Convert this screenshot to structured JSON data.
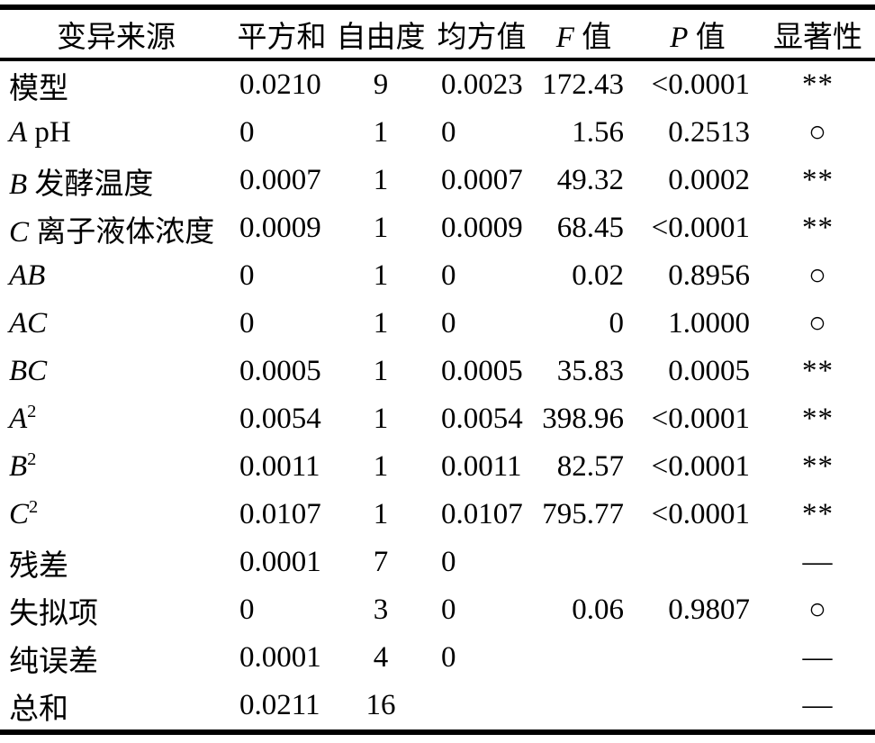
{
  "colors": {
    "text": "#000000",
    "background": "#ffffff",
    "rule": "#000000"
  },
  "table": {
    "columns": [
      {
        "key": "source",
        "em": "",
        "label": "变异来源"
      },
      {
        "key": "ss",
        "em": "",
        "label": "平方和"
      },
      {
        "key": "df",
        "em": "",
        "label": "自由度"
      },
      {
        "key": "ms",
        "em": "",
        "label": "均方值"
      },
      {
        "key": "f",
        "em": "F",
        "label": " 值"
      },
      {
        "key": "p",
        "em": "P",
        "label": " 值"
      },
      {
        "key": "sig",
        "em": "",
        "label": "显著性"
      }
    ],
    "rows": [
      {
        "label": {
          "em": "",
          "text": "模型",
          "sup": ""
        },
        "ss": "0.0210",
        "df": "9",
        "ms": "0.0023",
        "f": "172.43",
        "p": "<0.0001",
        "sig": "**"
      },
      {
        "label": {
          "em": "A",
          "text": " pH",
          "sup": ""
        },
        "ss": "0",
        "df": "1",
        "ms": "0",
        "f": "1.56",
        "p": "0.2513",
        "sig": "○"
      },
      {
        "label": {
          "em": "B",
          "text": " 发酵温度",
          "sup": ""
        },
        "ss": "0.0007",
        "df": "1",
        "ms": "0.0007",
        "f": "49.32",
        "p": "0.0002",
        "sig": "**"
      },
      {
        "label": {
          "em": "C",
          "text": " 离子液体浓度",
          "sup": ""
        },
        "ss": "0.0009",
        "df": "1",
        "ms": "0.0009",
        "f": "68.45",
        "p": "<0.0001",
        "sig": "**"
      },
      {
        "label": {
          "em": "AB",
          "text": "",
          "sup": ""
        },
        "ss": "0",
        "df": "1",
        "ms": "0",
        "f": "0.02",
        "p": "0.8956",
        "sig": "○"
      },
      {
        "label": {
          "em": "AC",
          "text": "",
          "sup": ""
        },
        "ss": "0",
        "df": "1",
        "ms": "0",
        "f": "0",
        "p": "1.0000",
        "sig": "○"
      },
      {
        "label": {
          "em": "BC",
          "text": "",
          "sup": ""
        },
        "ss": "0.0005",
        "df": "1",
        "ms": "0.0005",
        "f": "35.83",
        "p": "0.0005",
        "sig": "**"
      },
      {
        "label": {
          "em": "A",
          "text": "",
          "sup": "2"
        },
        "ss": "0.0054",
        "df": "1",
        "ms": "0.0054",
        "f": "398.96",
        "p": "<0.0001",
        "sig": "**"
      },
      {
        "label": {
          "em": "B",
          "text": "",
          "sup": "2"
        },
        "ss": "0.0011",
        "df": "1",
        "ms": "0.0011",
        "f": "82.57",
        "p": "<0.0001",
        "sig": "**"
      },
      {
        "label": {
          "em": "C",
          "text": "",
          "sup": "2"
        },
        "ss": "0.0107",
        "df": "1",
        "ms": "0.0107",
        "f": "795.77",
        "p": "<0.0001",
        "sig": "**"
      },
      {
        "label": {
          "em": "",
          "text": "残差",
          "sup": ""
        },
        "ss": "0.0001",
        "df": "7",
        "ms": "0",
        "f": "",
        "p": "",
        "sig": "—"
      },
      {
        "label": {
          "em": "",
          "text": "失拟项",
          "sup": ""
        },
        "ss": "0",
        "df": "3",
        "ms": "0",
        "f": "0.06",
        "p": "0.9807",
        "sig": "○"
      },
      {
        "label": {
          "em": "",
          "text": "纯误差",
          "sup": ""
        },
        "ss": "0.0001",
        "df": "4",
        "ms": "0",
        "f": "",
        "p": "",
        "sig": "—"
      },
      {
        "label": {
          "em": "",
          "text": "总和",
          "sup": ""
        },
        "ss": "0.0211",
        "df": "16",
        "ms": "",
        "f": "",
        "p": "",
        "sig": "—"
      }
    ]
  }
}
